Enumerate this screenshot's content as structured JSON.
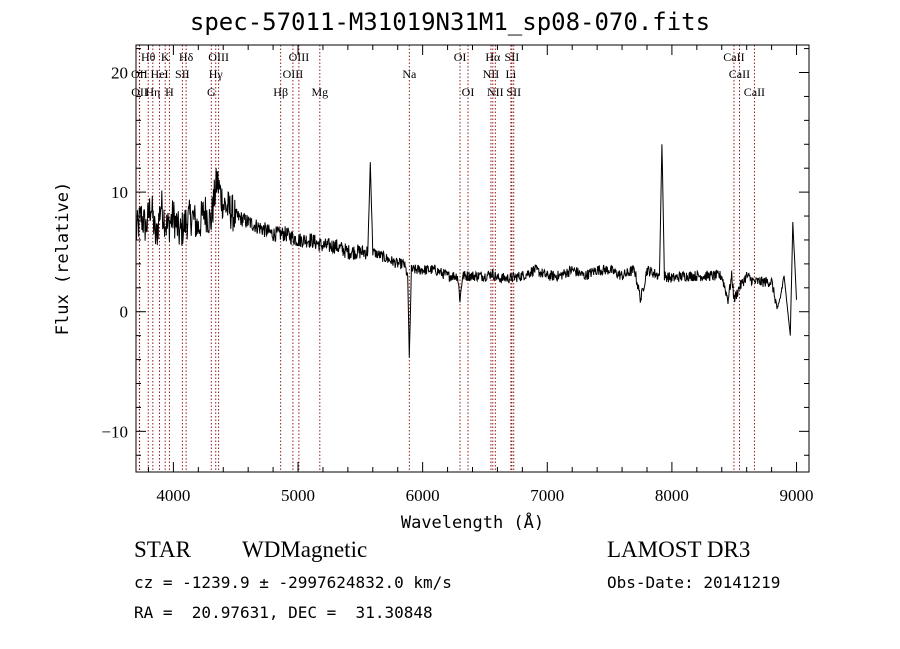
{
  "chart_data": {
    "type": "line",
    "title": "spec-57011-M31019N31M1_sp08-070.fits",
    "xlabel": "Wavelength (Å)",
    "ylabel": "Flux (relative)",
    "xlim": [
      3700,
      9100
    ],
    "ylim": [
      -13.4,
      22.3
    ],
    "x_ticks": [
      4000,
      5000,
      6000,
      7000,
      8000,
      9000
    ],
    "y_ticks": [
      -10,
      0,
      10,
      20
    ],
    "x_minor_step": 200,
    "y_minor_step": 2,
    "grid": false,
    "line_color": "#000000",
    "marker_color": "#8b0000",
    "series": [
      {
        "x": [
          3700,
          3740,
          3780,
          3820,
          3860,
          3900,
          3950,
          4000,
          4050,
          4100,
          4150,
          4200,
          4250,
          4300,
          4350,
          4400,
          4450,
          4500,
          4600,
          4700,
          4800,
          4900,
          5000,
          5100,
          5200,
          5300,
          5400,
          5500,
          5560,
          5580,
          5600,
          5700,
          5800,
          5850,
          5880,
          5893,
          5910,
          6000,
          6100,
          6200,
          6280,
          6300,
          6320,
          6400,
          6500,
          6560,
          6600,
          6700,
          6800,
          6900,
          7000,
          7100,
          7200,
          7300,
          7400,
          7500,
          7600,
          7700,
          7750,
          7800,
          7900,
          7920,
          7940,
          8000,
          8100,
          8200,
          8300,
          8400,
          8450,
          8480,
          8500,
          8540,
          8600,
          8660,
          8700,
          8800,
          8850,
          8900,
          8950,
          8970,
          9000
        ],
        "y": [
          6.5,
          8,
          7,
          9,
          6,
          9,
          7,
          8,
          6.5,
          7.5,
          8,
          7,
          8.5,
          7.5,
          11,
          9,
          8.5,
          8,
          7.5,
          7,
          6.5,
          6.5,
          6,
          6,
          5.5,
          5.5,
          5,
          5,
          5,
          12.5,
          5,
          4.5,
          4,
          4,
          3,
          -3.8,
          3.5,
          3.5,
          3.5,
          3,
          3,
          1,
          3,
          3,
          3,
          3.2,
          2.8,
          2.8,
          3,
          3.5,
          3,
          3,
          3.5,
          3,
          3.5,
          3.5,
          3,
          3.5,
          1,
          3.5,
          3,
          14,
          3,
          2.8,
          3,
          3,
          3,
          3,
          1,
          3,
          1,
          2,
          3,
          2.5,
          2.5,
          2.5,
          0,
          3,
          -2,
          7.5,
          1
        ]
      }
    ],
    "lines": [
      {
        "name": "Hθ",
        "x": 3798,
        "row": 1
      },
      {
        "name": "OII",
        "x": 3727,
        "row": 2
      },
      {
        "name": "Hη",
        "x": 3835,
        "row": 3
      },
      {
        "name": "OII",
        "x": 3729,
        "row": 3
      },
      {
        "name": "HeI",
        "x": 3889,
        "row": 2
      },
      {
        "name": "K",
        "x": 3934,
        "row": 1
      },
      {
        "name": "H",
        "x": 3968,
        "row": 3
      },
      {
        "name": "SII",
        "x": 4072,
        "row": 2
      },
      {
        "name": "Hδ",
        "x": 4102,
        "row": 1
      },
      {
        "name": "OIII",
        "x": 4363,
        "row": 1
      },
      {
        "name": "Hγ",
        "x": 4340,
        "row": 2
      },
      {
        "name": "G",
        "x": 4304,
        "row": 3
      },
      {
        "name": "OIII",
        "x": 5007,
        "row": 1
      },
      {
        "name": "OIII",
        "x": 4959,
        "row": 2
      },
      {
        "name": "Hβ",
        "x": 4861,
        "row": 3
      },
      {
        "name": "Mg",
        "x": 5175,
        "row": 3
      },
      {
        "name": "Na",
        "x": 5893,
        "row": 2
      },
      {
        "name": "OI",
        "x": 6300,
        "row": 1
      },
      {
        "name": "OI",
        "x": 6364,
        "row": 3
      },
      {
        "name": "Hα",
        "x": 6563,
        "row": 1
      },
      {
        "name": "NII",
        "x": 6548,
        "row": 2
      },
      {
        "name": "NII",
        "x": 6583,
        "row": 3
      },
      {
        "name": "SII",
        "x": 6716,
        "row": 1
      },
      {
        "name": "Li",
        "x": 6708,
        "row": 2
      },
      {
        "name": "SII",
        "x": 6731,
        "row": 3
      },
      {
        "name": "CaII",
        "x": 8498,
        "row": 1
      },
      {
        "name": "CaII",
        "x": 8542,
        "row": 2
      },
      {
        "name": "CaII",
        "x": 8662,
        "row": 3
      }
    ]
  },
  "footer": {
    "class_label": "STAR",
    "subclass": "WDMagnetic",
    "survey": "LAMOST DR3",
    "cz_line": "cz = -1239.9 ± -2997624832.0 km/s",
    "obs_date": "Obs-Date: 20141219",
    "coords": "RA =  20.97631, DEC =  31.30848"
  }
}
